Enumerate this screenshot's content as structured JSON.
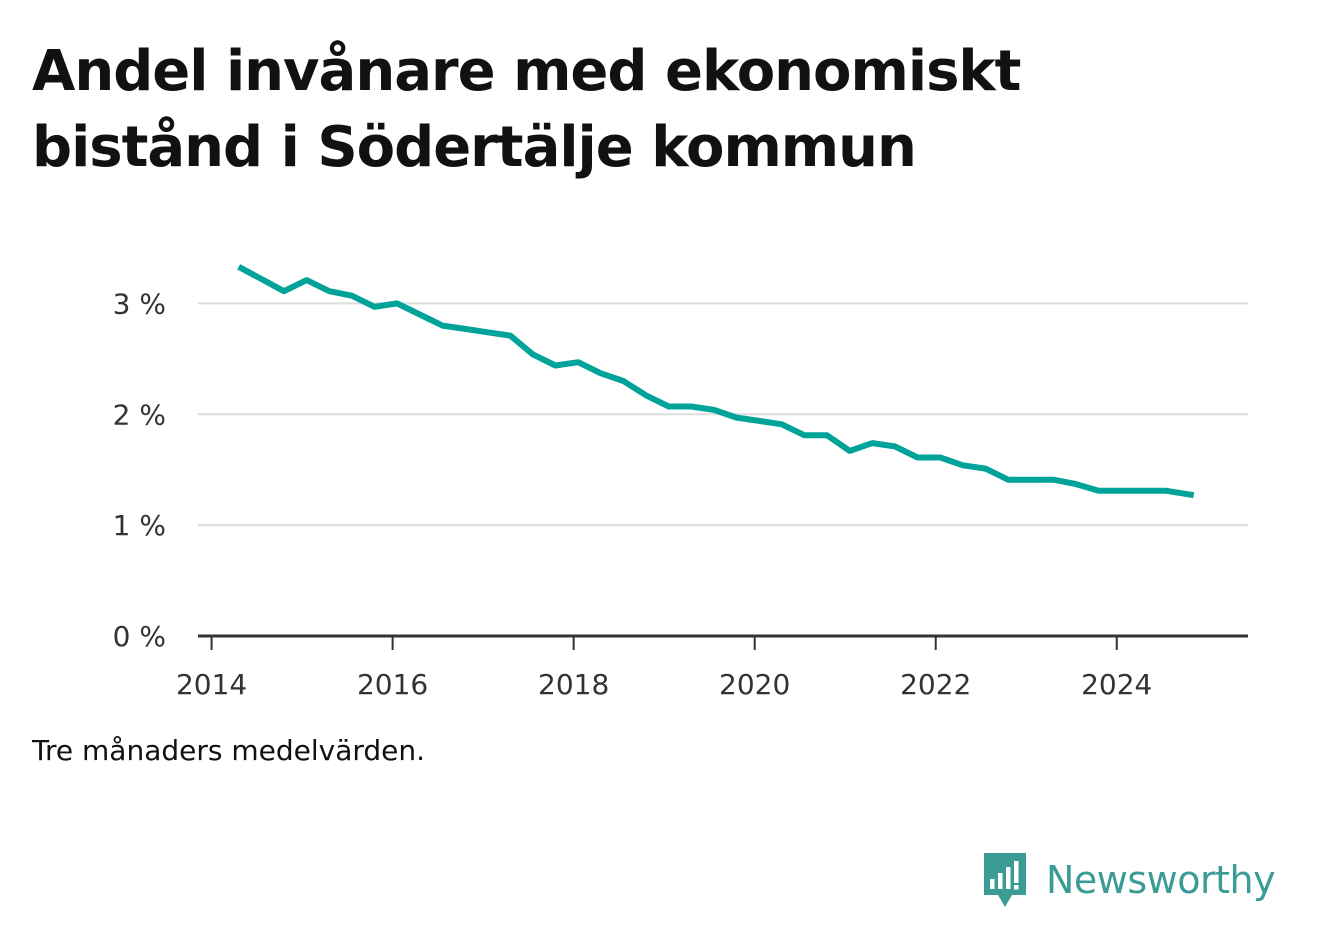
{
  "title": "Andel invånare med ekonomiskt bistånd i Södertälje kommun",
  "note": "Tre månaders medelvärden.",
  "brand": {
    "name": "Newsworthy",
    "icon": "newsworthy-logo-icon",
    "color": "#3a9c95"
  },
  "chart_data": {
    "type": "line",
    "title": "Andel invånare med ekonomiskt bistånd i Södertälje kommun",
    "xlabel": "",
    "ylabel": "",
    "xlim": [
      2013.85,
      2025.45
    ],
    "ylim": [
      0,
      3.5
    ],
    "x_ticks": [
      2014,
      2016,
      2018,
      2020,
      2022,
      2024
    ],
    "x_tick_labels": [
      "2014",
      "2016",
      "2018",
      "2020",
      "2022",
      "2024"
    ],
    "y_ticks": [
      0,
      1,
      2,
      3
    ],
    "y_tick_labels": [
      "0 %",
      "1 %",
      "2 %",
      "3 %"
    ],
    "grid": true,
    "color": "#00a399",
    "series": [
      {
        "x": [
          2014.3,
          2014.55,
          2014.8,
          2015.05,
          2015.3,
          2015.55,
          2015.8,
          2016.05,
          2016.3,
          2016.55,
          2016.8,
          2017.05,
          2017.3,
          2017.55,
          2017.8,
          2018.05,
          2018.3,
          2018.55,
          2018.8,
          2019.05,
          2019.3,
          2019.55,
          2019.8,
          2020.05,
          2020.3,
          2020.55,
          2020.8,
          2021.05,
          2021.3,
          2021.55,
          2021.8,
          2022.05,
          2022.3,
          2022.55,
          2022.8,
          2023.05,
          2023.3,
          2023.55,
          2023.8,
          2024.05,
          2024.3,
          2024.55,
          2024.85
        ],
        "values": [
          3.33,
          3.22,
          3.11,
          3.21,
          3.11,
          3.07,
          2.97,
          3.0,
          2.9,
          2.8,
          2.77,
          2.74,
          2.71,
          2.54,
          2.44,
          2.47,
          2.37,
          2.3,
          2.17,
          2.07,
          2.07,
          2.04,
          1.97,
          1.94,
          1.91,
          1.81,
          1.81,
          1.67,
          1.74,
          1.71,
          1.61,
          1.61,
          1.54,
          1.51,
          1.41,
          1.41,
          1.41,
          1.37,
          1.31,
          1.31,
          1.31,
          1.31,
          1.27
        ]
      }
    ]
  }
}
